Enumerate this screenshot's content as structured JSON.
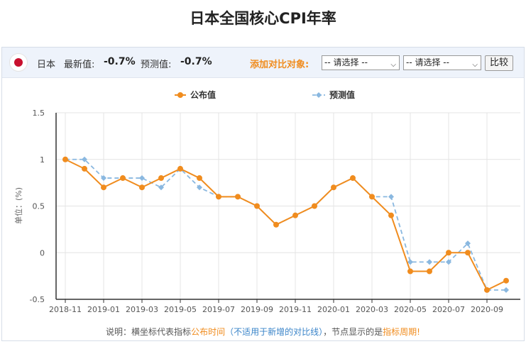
{
  "title": "日本全国核心CPI年率",
  "toolbar": {
    "flag_icon": "japan-flag-icon",
    "country": "日本",
    "latest_label": "最新值:",
    "latest_value": "-0.7%",
    "forecast_label": "预测值:",
    "forecast_value": "-0.7%",
    "compare_label": "添加对比对象:",
    "select1": "-- 请选择 --",
    "select2": "-- 请选择 --",
    "compare_button": "比较"
  },
  "legend": {
    "published": "公布值",
    "forecast": "预测值"
  },
  "colors": {
    "published": "#f08c1e",
    "forecast": "#8ab8e0"
  },
  "note": {
    "prefix": "说明：横坐标代表指标",
    "part1": "公布时间",
    "part2": "（不适用于新增的对比线）",
    "part3": "，节点显示的是",
    "part4": "指标周期",
    "suffix": "!"
  },
  "chart_data": {
    "type": "line",
    "ylabel": "单位：(%)",
    "ylim": [
      -0.5,
      1.5
    ],
    "yticks": [
      "1.5",
      "1",
      "0.5",
      "0",
      "-0.5"
    ],
    "x": [
      "2018-11",
      "2018-12",
      "2019-01",
      "2019-02",
      "2019-03",
      "2019-04",
      "2019-05",
      "2019-06",
      "2019-07",
      "2019-08",
      "2019-09",
      "2019-10",
      "2019-11",
      "2019-12",
      "2020-01",
      "2020-02",
      "2020-03",
      "2020-04",
      "2020-05",
      "2020-06",
      "2020-07",
      "2020-08",
      "2020-09",
      "2020-10"
    ],
    "xtick_labels": [
      "2018-11",
      "2019-01",
      "2019-03",
      "2019-05",
      "2019-07",
      "2019-09",
      "2019-11",
      "2020-01",
      "2020-03",
      "2020-05",
      "2020-07",
      "2020-09"
    ],
    "grid": true,
    "legend_position": "top",
    "series": [
      {
        "name": "公布值",
        "values": [
          1.0,
          0.9,
          0.7,
          0.8,
          0.7,
          0.8,
          0.9,
          0.8,
          0.6,
          0.6,
          0.5,
          0.3,
          0.4,
          0.5,
          0.7,
          0.8,
          0.6,
          0.4,
          -0.2,
          -0.2,
          0.0,
          0.0,
          -0.4,
          -0.3
        ]
      },
      {
        "name": "预测值",
        "values": [
          1.0,
          1.0,
          0.8,
          0.8,
          0.8,
          0.7,
          0.9,
          0.7,
          0.6,
          0.6,
          0.5,
          0.3,
          0.4,
          0.5,
          0.7,
          0.8,
          0.6,
          0.6,
          -0.1,
          -0.1,
          -0.1,
          0.1,
          -0.4,
          -0.4
        ]
      }
    ]
  }
}
